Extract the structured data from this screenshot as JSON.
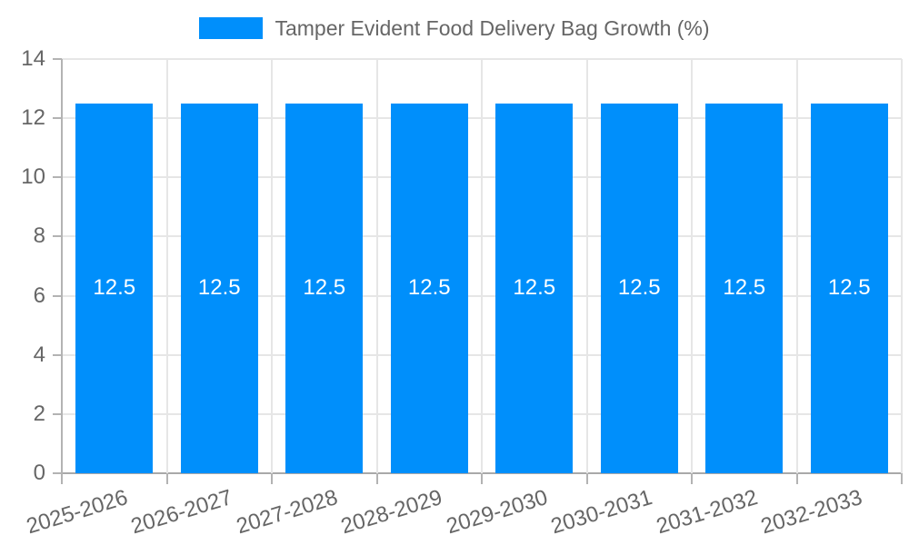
{
  "legend": {
    "label": "Tamper Evident Food Delivery Bag Growth (%)",
    "swatch_color": "#008FFB"
  },
  "chart_data": {
    "type": "bar",
    "title": "Tamper Evident Food Delivery Bag Growth (%)",
    "categories": [
      "2025-2026",
      "2026-2027",
      "2027-2028",
      "2028-2029",
      "2029-2030",
      "2030-2031",
      "2031-2032",
      "2032-2033"
    ],
    "series": [
      {
        "name": "Tamper Evident Food Delivery Bag Growth (%)",
        "values": [
          12.5,
          12.5,
          12.5,
          12.5,
          12.5,
          12.5,
          12.5,
          12.5
        ],
        "data_labels": [
          "12.5",
          "12.5",
          "12.5",
          "12.5",
          "12.5",
          "12.5",
          "12.5",
          "12.5"
        ]
      }
    ],
    "xlabel": "",
    "ylabel": "",
    "ylim": [
      0,
      14
    ],
    "yticks": [
      0,
      2,
      4,
      6,
      8,
      10,
      12,
      14
    ],
    "grid": "both",
    "legend_position": "top-center",
    "colors": {
      "bar": "#008FFB",
      "data_label": "#ffffff",
      "axis_text": "#666666",
      "gridline": "#e6e6e6",
      "axis_line": "#b3b3b3",
      "zero_line": "#a9a9a9",
      "background": "#ffffff"
    }
  }
}
